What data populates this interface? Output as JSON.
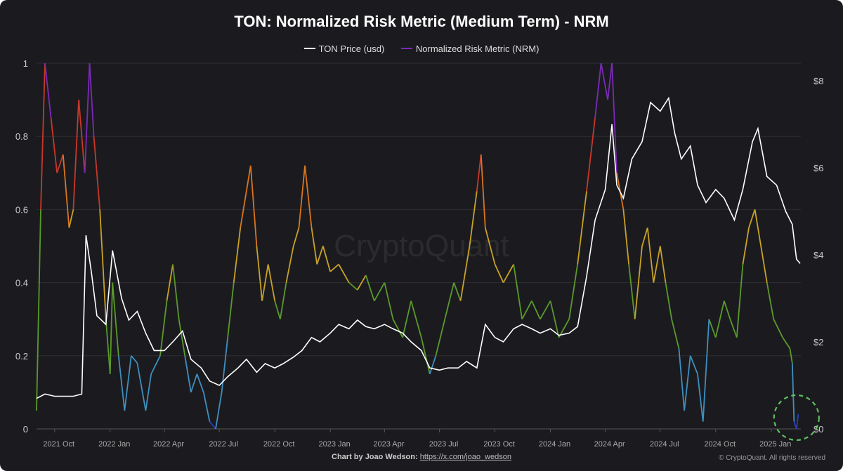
{
  "chart_data": {
    "type": "line",
    "title": "TON: Normalized Risk Metric (Medium Term) - NRM",
    "legend": [
      "TON Price (usd)",
      "Normalized Risk Metric (NRM)"
    ],
    "legend_placement": "top-center",
    "grid": true,
    "watermark": "CryptoQuant",
    "y_left": {
      "range": [
        0,
        1
      ],
      "ticks": [
        "0",
        "0.2",
        "0.4",
        "0.6",
        "0.8",
        "1"
      ]
    },
    "y_right": {
      "range": [
        0,
        8.4
      ],
      "ticks": [
        "$0",
        "$2",
        "$4",
        "$6",
        "$8"
      ]
    },
    "x_ticks": [
      {
        "date": "2021-10-01",
        "label": "2021 Oct"
      },
      {
        "date": "2022-01-01",
        "label": "2022 Jan"
      },
      {
        "date": "2022-04-01",
        "label": "2022 Apr"
      },
      {
        "date": "2022-07-01",
        "label": "2022 Jul"
      },
      {
        "date": "2022-10-01",
        "label": "2022 Oct"
      },
      {
        "date": "2023-01-01",
        "label": "2023 Jan"
      },
      {
        "date": "2023-04-01",
        "label": "2023 Apr"
      },
      {
        "date": "2023-07-01",
        "label": "2023 Jul"
      },
      {
        "date": "2023-10-01",
        "label": "2023 Oct"
      },
      {
        "date": "2024-01-01",
        "label": "2024 Jan"
      },
      {
        "date": "2024-04-01",
        "label": "2024 Apr"
      },
      {
        "date": "2024-07-01",
        "label": "2024 Jul"
      },
      {
        "date": "2024-10-01",
        "label": "2024 Oct"
      },
      {
        "date": "2025-01-01",
        "label": "2025 Jan"
      }
    ],
    "nrm_color_bands": [
      {
        "max": 0.05,
        "color": "#2a3fb8"
      },
      {
        "max": 0.2,
        "color": "#3f8fc0"
      },
      {
        "max": 0.4,
        "color": "#5a9a2a"
      },
      {
        "max": 0.6,
        "color": "#c9a227"
      },
      {
        "max": 0.7,
        "color": "#d9751e"
      },
      {
        "max": 0.85,
        "color": "#c8382a"
      },
      {
        "max": 1.01,
        "color": "#7b2ab8"
      }
    ],
    "series": [
      {
        "name": "TON Price (usd)",
        "axis": "right",
        "color": "#ffffff",
        "points": [
          [
            "2021-09-01",
            0.7
          ],
          [
            "2021-09-15",
            0.8
          ],
          [
            "2021-10-01",
            0.75
          ],
          [
            "2021-11-01",
            0.75
          ],
          [
            "2021-11-15",
            0.8
          ],
          [
            "2021-11-22",
            4.45
          ],
          [
            "2021-12-01",
            3.6
          ],
          [
            "2021-12-10",
            2.6
          ],
          [
            "2021-12-25",
            2.4
          ],
          [
            "2022-01-05",
            4.1
          ],
          [
            "2022-01-20",
            3.0
          ],
          [
            "2022-02-01",
            2.5
          ],
          [
            "2022-02-15",
            2.7
          ],
          [
            "2022-03-01",
            2.2
          ],
          [
            "2022-03-15",
            1.8
          ],
          [
            "2022-04-01",
            1.8
          ],
          [
            "2022-04-15",
            2.0
          ],
          [
            "2022-05-01",
            2.25
          ],
          [
            "2022-05-15",
            1.6
          ],
          [
            "2022-06-01",
            1.4
          ],
          [
            "2022-06-15",
            1.1
          ],
          [
            "2022-07-01",
            1.0
          ],
          [
            "2022-07-15",
            1.2
          ],
          [
            "2022-08-01",
            1.4
          ],
          [
            "2022-08-15",
            1.6
          ],
          [
            "2022-09-01",
            1.3
          ],
          [
            "2022-09-15",
            1.5
          ],
          [
            "2022-10-01",
            1.4
          ],
          [
            "2022-10-15",
            1.5
          ],
          [
            "2022-11-01",
            1.65
          ],
          [
            "2022-11-15",
            1.8
          ],
          [
            "2022-12-01",
            2.1
          ],
          [
            "2022-12-15",
            2.0
          ],
          [
            "2023-01-01",
            2.2
          ],
          [
            "2023-01-15",
            2.4
          ],
          [
            "2023-02-01",
            2.3
          ],
          [
            "2023-02-15",
            2.5
          ],
          [
            "2023-03-01",
            2.35
          ],
          [
            "2023-03-15",
            2.3
          ],
          [
            "2023-04-01",
            2.4
          ],
          [
            "2023-04-15",
            2.3
          ],
          [
            "2023-05-01",
            2.2
          ],
          [
            "2023-05-15",
            2.0
          ],
          [
            "2023-06-01",
            1.8
          ],
          [
            "2023-06-15",
            1.4
          ],
          [
            "2023-07-01",
            1.35
          ],
          [
            "2023-07-15",
            1.4
          ],
          [
            "2023-08-01",
            1.4
          ],
          [
            "2023-08-15",
            1.55
          ],
          [
            "2023-09-01",
            1.4
          ],
          [
            "2023-09-15",
            2.4
          ],
          [
            "2023-10-01",
            2.1
          ],
          [
            "2023-10-15",
            2.0
          ],
          [
            "2023-11-01",
            2.3
          ],
          [
            "2023-11-15",
            2.4
          ],
          [
            "2023-12-01",
            2.3
          ],
          [
            "2023-12-15",
            2.2
          ],
          [
            "2024-01-01",
            2.3
          ],
          [
            "2024-01-15",
            2.15
          ],
          [
            "2024-02-01",
            2.2
          ],
          [
            "2024-02-15",
            2.35
          ],
          [
            "2024-03-01",
            3.5
          ],
          [
            "2024-03-15",
            4.8
          ],
          [
            "2024-04-01",
            5.5
          ],
          [
            "2024-04-12",
            7.0
          ],
          [
            "2024-04-20",
            5.6
          ],
          [
            "2024-05-01",
            5.3
          ],
          [
            "2024-05-15",
            6.2
          ],
          [
            "2024-06-01",
            6.6
          ],
          [
            "2024-06-15",
            7.5
          ],
          [
            "2024-07-01",
            7.3
          ],
          [
            "2024-07-15",
            7.6
          ],
          [
            "2024-07-25",
            6.8
          ],
          [
            "2024-08-05",
            6.2
          ],
          [
            "2024-08-20",
            6.5
          ],
          [
            "2024-09-01",
            5.6
          ],
          [
            "2024-09-15",
            5.2
          ],
          [
            "2024-10-01",
            5.5
          ],
          [
            "2024-10-15",
            5.3
          ],
          [
            "2024-11-01",
            4.8
          ],
          [
            "2024-11-15",
            5.5
          ],
          [
            "2024-12-01",
            6.6
          ],
          [
            "2024-12-10",
            6.9
          ],
          [
            "2024-12-25",
            5.8
          ],
          [
            "2025-01-10",
            5.6
          ],
          [
            "2025-01-25",
            5.0
          ],
          [
            "2025-02-05",
            4.7
          ],
          [
            "2025-02-12",
            3.9
          ],
          [
            "2025-02-18",
            3.8
          ]
        ]
      },
      {
        "name": "Normalized Risk Metric (NRM)",
        "axis": "left",
        "color": "#7b2ab8",
        "points": [
          [
            "2021-09-01",
            0.05
          ],
          [
            "2021-09-08",
            0.6
          ],
          [
            "2021-09-15",
            1.0
          ],
          [
            "2021-09-25",
            0.85
          ],
          [
            "2021-10-05",
            0.7
          ],
          [
            "2021-10-15",
            0.75
          ],
          [
            "2021-10-25",
            0.55
          ],
          [
            "2021-11-01",
            0.6
          ],
          [
            "2021-11-10",
            0.9
          ],
          [
            "2021-11-20",
            0.7
          ],
          [
            "2021-11-28",
            1.0
          ],
          [
            "2021-12-05",
            0.8
          ],
          [
            "2021-12-15",
            0.6
          ],
          [
            "2021-12-25",
            0.3
          ],
          [
            "2022-01-01",
            0.15
          ],
          [
            "2022-01-05",
            0.4
          ],
          [
            "2022-01-15",
            0.2
          ],
          [
            "2022-01-25",
            0.05
          ],
          [
            "2022-02-05",
            0.2
          ],
          [
            "2022-02-15",
            0.18
          ],
          [
            "2022-03-01",
            0.05
          ],
          [
            "2022-03-10",
            0.15
          ],
          [
            "2022-03-25",
            0.2
          ],
          [
            "2022-04-05",
            0.35
          ],
          [
            "2022-04-15",
            0.45
          ],
          [
            "2022-04-25",
            0.3
          ],
          [
            "2022-05-05",
            0.2
          ],
          [
            "2022-05-15",
            0.1
          ],
          [
            "2022-05-25",
            0.15
          ],
          [
            "2022-06-05",
            0.1
          ],
          [
            "2022-06-15",
            0.02
          ],
          [
            "2022-06-25",
            0.0
          ],
          [
            "2022-07-05",
            0.1
          ],
          [
            "2022-07-15",
            0.25
          ],
          [
            "2022-07-25",
            0.4
          ],
          [
            "2022-08-05",
            0.55
          ],
          [
            "2022-08-15",
            0.65
          ],
          [
            "2022-08-22",
            0.72
          ],
          [
            "2022-09-01",
            0.5
          ],
          [
            "2022-09-10",
            0.35
          ],
          [
            "2022-09-20",
            0.45
          ],
          [
            "2022-10-01",
            0.35
          ],
          [
            "2022-10-10",
            0.3
          ],
          [
            "2022-10-20",
            0.4
          ],
          [
            "2022-11-01",
            0.5
          ],
          [
            "2022-11-10",
            0.55
          ],
          [
            "2022-11-20",
            0.72
          ],
          [
            "2022-12-01",
            0.55
          ],
          [
            "2022-12-10",
            0.45
          ],
          [
            "2022-12-20",
            0.5
          ],
          [
            "2023-01-01",
            0.43
          ],
          [
            "2023-01-15",
            0.45
          ],
          [
            "2023-02-01",
            0.4
          ],
          [
            "2023-02-15",
            0.38
          ],
          [
            "2023-03-01",
            0.42
          ],
          [
            "2023-03-15",
            0.35
          ],
          [
            "2023-04-01",
            0.4
          ],
          [
            "2023-04-15",
            0.3
          ],
          [
            "2023-05-01",
            0.25
          ],
          [
            "2023-05-15",
            0.35
          ],
          [
            "2023-06-01",
            0.25
          ],
          [
            "2023-06-15",
            0.15
          ],
          [
            "2023-06-25",
            0.2
          ],
          [
            "2023-07-10",
            0.3
          ],
          [
            "2023-07-25",
            0.4
          ],
          [
            "2023-08-05",
            0.35
          ],
          [
            "2023-08-20",
            0.5
          ],
          [
            "2023-09-01",
            0.65
          ],
          [
            "2023-09-08",
            0.75
          ],
          [
            "2023-09-15",
            0.55
          ],
          [
            "2023-10-01",
            0.45
          ],
          [
            "2023-10-15",
            0.4
          ],
          [
            "2023-11-01",
            0.45
          ],
          [
            "2023-11-15",
            0.3
          ],
          [
            "2023-12-01",
            0.35
          ],
          [
            "2023-12-15",
            0.3
          ],
          [
            "2024-01-01",
            0.35
          ],
          [
            "2024-01-15",
            0.25
          ],
          [
            "2024-02-01",
            0.3
          ],
          [
            "2024-02-15",
            0.45
          ],
          [
            "2024-03-01",
            0.65
          ],
          [
            "2024-03-15",
            0.85
          ],
          [
            "2024-03-25",
            1.0
          ],
          [
            "2024-04-05",
            0.9
          ],
          [
            "2024-04-12",
            1.0
          ],
          [
            "2024-04-20",
            0.7
          ],
          [
            "2024-05-01",
            0.6
          ],
          [
            "2024-05-10",
            0.45
          ],
          [
            "2024-05-20",
            0.3
          ],
          [
            "2024-06-01",
            0.5
          ],
          [
            "2024-06-10",
            0.55
          ],
          [
            "2024-06-20",
            0.4
          ],
          [
            "2024-07-01",
            0.5
          ],
          [
            "2024-07-10",
            0.4
          ],
          [
            "2024-07-20",
            0.3
          ],
          [
            "2024-08-01",
            0.22
          ],
          [
            "2024-08-10",
            0.05
          ],
          [
            "2024-08-20",
            0.2
          ],
          [
            "2024-09-01",
            0.15
          ],
          [
            "2024-09-10",
            0.02
          ],
          [
            "2024-09-20",
            0.3
          ],
          [
            "2024-10-01",
            0.25
          ],
          [
            "2024-10-15",
            0.35
          ],
          [
            "2024-10-25",
            0.3
          ],
          [
            "2024-11-05",
            0.25
          ],
          [
            "2024-11-15",
            0.45
          ],
          [
            "2024-11-25",
            0.55
          ],
          [
            "2024-12-05",
            0.6
          ],
          [
            "2024-12-15",
            0.5
          ],
          [
            "2024-12-25",
            0.4
          ],
          [
            "2025-01-05",
            0.3
          ],
          [
            "2025-01-20",
            0.25
          ],
          [
            "2025-02-01",
            0.22
          ],
          [
            "2025-02-05",
            0.18
          ],
          [
            "2025-02-08",
            0.02
          ],
          [
            "2025-02-12",
            0.0
          ],
          [
            "2025-02-15",
            0.04
          ]
        ]
      }
    ],
    "annotation": {
      "type": "dashed-circle",
      "color": "#5fbf5f",
      "date": "2025-02-12"
    }
  },
  "footer": {
    "credit": "Chart by Joao Wedson:",
    "link": "https://x.com/joao_wedson",
    "copyright": "© CryptoQuant. All rights reserved"
  }
}
